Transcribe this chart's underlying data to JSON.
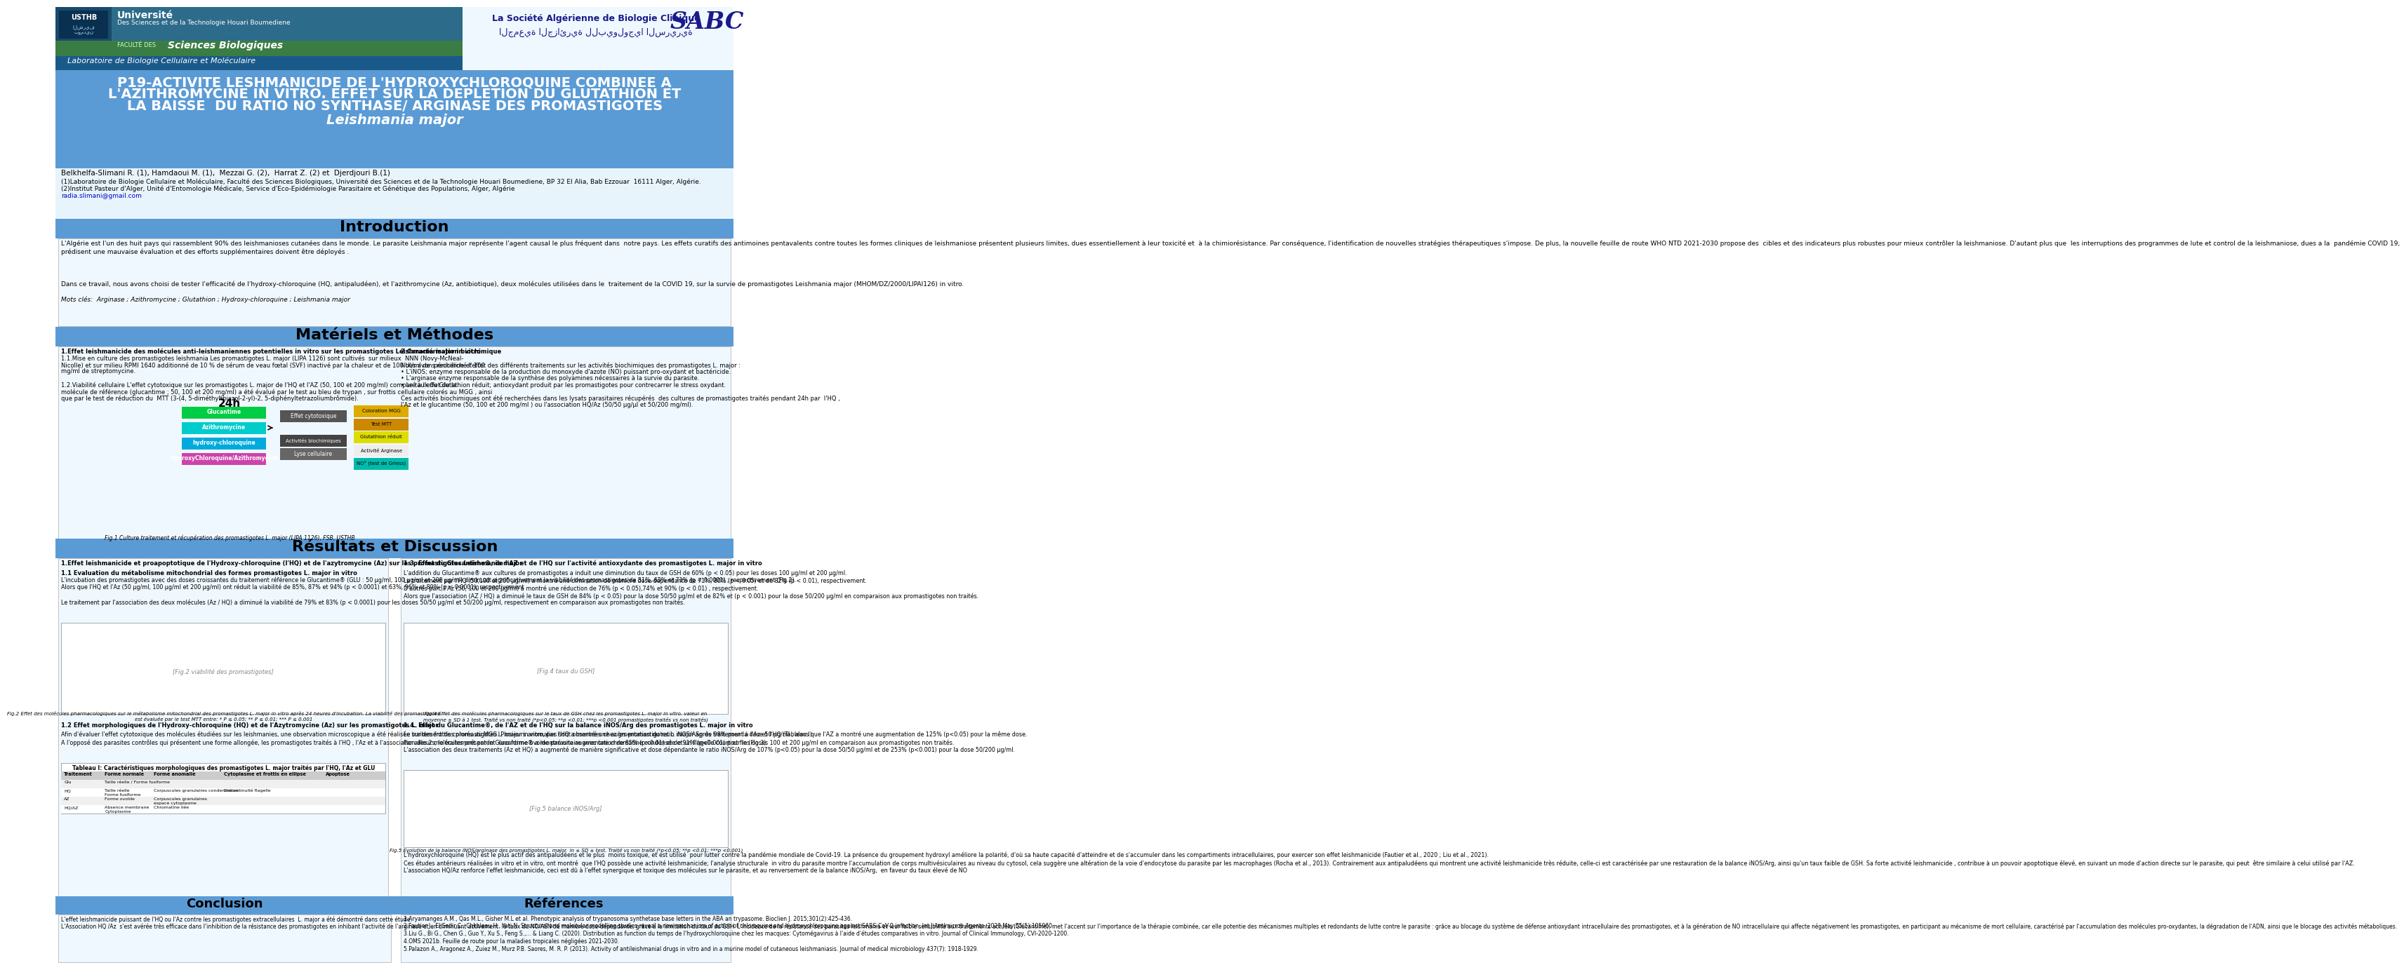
{
  "header_left_bg": "#2d6b8a",
  "header_logo_bg": "#1a4a6b",
  "faculty_green": "#3a7d44",
  "lab_blue": "#1a5a8a",
  "header_right_bg": "#f0f8ff",
  "title_bg": "#5b9bd5",
  "section_bg": "#5b9bd5",
  "content_bg": "#f0f8ff",
  "white": "#ffffff",
  "authors": "Belkhelfa-Slimani R. (1), Hamdaoui M. (1),  Mezzai G. (2),  Harrat Z. (2) et  Djerdjouri B.(1)",
  "affiliation1": "(1)Laboratoire de Biologie Cellulaire et Moléculaire, Faculté des Sciences Biologiques, Université des Sciences et de la Technologie Houari Boumediene, BP 32 El Alia, Bab Ezzouar  16111 Alger, Algérie.",
  "affiliation2": "(2)Institut Pasteur d'Alger, Unité d'Entomologie Médicale, Service d'Eco-Epidémiologie Parasitaire et Génétique des Populations, Alger, Algérie",
  "email": "radia.slimani@gmail.com",
  "poster_line1": "P19-ACTIVITE LESHMANICIDE DE L'HYDROXYCHLOROQUINE COMBINEE A",
  "poster_line2": "L'AZITHROMYCINE IN VITRO. EFFET SUR LA DEPLETION DU GLUTATHION ET",
  "poster_line3": "LA BAISSE  DU RATIO NO SYNTHASE/ ARGINASE DES PROMASTIGOTES",
  "poster_subtitle": "Leishmania major",
  "intro_para1": "L'Algérie est l'un des huit pays qui rassemblent 90% des leishmanioses cutanées dans le monde. Le parasite Leishmania major représente l'agent causal le plus fréquent dans  notre pays. Les effets curatifs des antimoines pentavalents contre toutes les formes cliniques de leishmaniose présentent plusieurs limites, dues essentiellement à leur toxicité et  à la chimiorésistance. Par conséquence, l'identification de nouvelles stratégies thérapeutiques s'impose. De plus, la nouvelle feuille de route WHO NTD 2021-2030 propose des  cibles et des indicateurs plus robustes pour mieux contrôler la leishmaniose. D'autant plus que  les interruptions des programmes de lute et control de la leishmaniose, dues a la  pandémie COVID 19, prédisent une mauvaise évaluation et des efforts supplémentaires doivent être déployés .",
  "intro_para2": "Dans ce travail, nous avons choisi de tester l'efficacité de l'hydroxy-chloroquine (HQ, antipaludéen), et l'azithromycine (Az, antibiotique), deux molécules utilisées dans le  traitement de la COVID 19, sur la survie de promastigotes Leishmania major (MHOM/DZ/2000/LIPAI126) in vitro.",
  "intro_motscles": "Mots clés:  Arginase ; Azithromycine ; Glutathion ; Hydroxy-chloroquine ; Leishmania major",
  "methods_l1": "1.Effet leishmanicide des molécules anti-leishmaniennes potentielles in vitro sur les promastigotes Leishmania major in vitro",
  "methods_l2": "1.1.Mise en culture des promastigotes leishmania Les promastigotes L. major (LIPA 1126) sont cultivés  sur milieux  NNN (Novy-McNeal-",
  "methods_l3": "Nicolle) et sur milieu RPMI 1640 additionné de 10 % de sérum de veau fœtal (SVF) inactivé par la chaleur et de 100 UI/ml de  pénicilline et 100",
  "methods_l4": "mg/ml de streptomycine.",
  "methods_l5": "1.2.Viabilité cellulaire L'effet cytotoxique sur les promastigotes L. major de l'HQ et l'AZ (50, 100 et 200 mg/ml) comparé à l'effet de la",
  "methods_l6": "molécule de référence (glucantime ; 50, 100 et 200 mg/ml) a été évalué par le test au bleu de trypan , sur frottis cellulaire colorés au MGG , ainsi",
  "methods_l7": "que par le test de réduction du  MTT (3-(4, 5-diméthylthiazol-2-yl)-2, 5-diphényltetrazoliumbrômide).",
  "methods_r1": "2.Caractérisation biochimique",
  "methods_r2": "Nous avons recherché l'effet des différents traitements sur les activités biochimiques des promastigotes L. major :",
  "methods_r3": "• L'iNOS; enzyme responsable de la production du monoxyde d'azote (NO) puissant pro-oxydant et bactéricide.",
  "methods_r4": "• L'arginase enzyme responsable de la synthèse des polyamines nécessaires à la survie du parasite.",
  "methods_r5": "• Le taux du Glutathion réduit; antioxydant produit par les promastigotes pour contrecarrer le stress oxydant.",
  "methods_r6": "Ces activités biochimiques ont été recherchées dans les lysats parasitaires récupérés  des cultures de promastigotes traités pendant 24h par  l'HQ ,",
  "methods_r7": "l'Az et le glucantime (50, 100 et 200 mg/ml ) ou l'association HQ/Az (50/50 µg/µl et 50/200 mg/ml).",
  "fig1_caption": "Fig.1 Culture traitement et récupération des promastigotes L. major (LIPA 1126), FSB, USTHB",
  "res_title_left": "1.Effet leishmanicide et proapoptotique de l'Hydroxy-chloroquine (l'HQ) et de l'azytromycine (Az) sur les promastigotes Leishmania major",
  "res_11": "1.1 Evaluation du métabolisme mitochondrial des formes promastigotes L. major in vitro",
  "res_11_body": "L'incubation des promastigotes avec des doses croissantes du traitement référence le Glucantime® (GLU : 50 µg/ml, 100 µg/ml et 200 µg/ml) diminuait significativement la viabilité des promastigotes de 51%, 63% et 71% (p < 0.0001) ; respectivement (Fig.2).\nAlors que l'HQ et l'Az (50 µg/ml, 100 µg/ml et 200 µg/ml) ont réduit la viabilité de 85%, 87% et 94% (p < 0.0001) et 63%, 96% et 89% (p < 0.0001), respectivement\n\nLe traitement par l'association des deux molécules (Az / HQ) a diminué la viabilité de 79% et 83% (p < 0.0001) pour les doses 50/50 µg/ml et 50/200 µg/ml, respectivement en comparaison aux promastigotes non traités.",
  "fig2_caption": "Fig.2 Effet des molécules pharmacologiques sur le métabolisme mitochondrial des promastigotes L. major in vitro après 24 heures d'incubation. La viabilité des promastigotes\nest évaluée par le test MTT entre: * P ≤ 0.05; ** P ≤ 0.01; *** P ≤ 0.001",
  "res_12": "1.2 Effet morphologiques de l'Hydroxy-chloroquine (HQ) et de l'Azytromycine (Az) sur les promastigotes L. major",
  "res_12_body": "Afin d'évaluer l'effet cytotoxique des molécules étudiées sur les leishmanies, une observation microscopique a été réalisée sur des frottis colorés au MGG. Plusieurs anomalies sont observées chez les promastigotes L. major après traitement à l'Az et l'HQ (Tableau I).\nA l'opposé des parasites contrôles qui présentent une forme allongée, les promastigotes traités à l'HQ , l'Az et à l'association des 2 molécules présentent  une forme ovoïde parasitaire avec une chromatine condensée et un flagelle court et fin (Fig.3).",
  "res_13": "1.3. Effet du Glucantime®, de l'AZ et de l'HQ sur l'activité antioxydante des promastigotes L. major in vitro",
  "res_13_body": "L'addition du Glucantime® aux cultures de promastigotes a induit une diminution du taux de GSH de 60% (p < 0.05) pour les doses 100 µg/ml et 200 µg/ml.\nLe traitement par l'HQ (50,100 et 200 µg/ml) a montré une diminution de manière dose-dépendante de 71%, 80% (p < 0.05) et de 82% (p < 0.01), respectivement.\nD'autres part, l'Az (50, 100 et 200 µg/ml) a montré une réduction de 76% (p < 0.05),74% et 90% (p < 0.01) , respectivement.\nAlors que l'association (AZ / HQ) a diminué le taux de GSH de 84% (p < 0.05) pour la dose 50/50 µg/ml et de 82% et (p < 0.001) pour la dose 50/200 µg/ml en comparaison aux promastigotes non traités.",
  "fig4_caption": "Fig.4 Effet des molécules pharmacologiques sur le taux de GSH chez les promastigotes L. major in vitro. valeur en\nmoyenne ± SD à 1 test. Traité vs non traité (*p<0.05; **p <0.01; ***p <0.001 promastigotes traités vs non traités)",
  "res_14": "1.4. Effet du Glucantime®, de l'AZ et de l'HQ sur la balance iNOS/Arg des promastigotes L. major in vitro",
  "res_14_body": "Le traitement des promastigotes L. major in vitro, par l'HQ a montré une augmentation du ratio iNOS/ASg de 98% pour la dose 50 µg/ml , alors que l'AZ a montré une augmentation de 125% (p<0.05) pour la même dose.\nPar ailleurs, le traitement par le Glucantime® a montré une augmentation de 85% (p<0.01) et de 91% (p<0.001) pour les doses 100 et 200 µg/ml en comparaison aux promastigotes non traités.\nL'association des deux traitements (Az et HQ) a augmenté de manière significative et dose dépendante le ratio iNOS/Arg de 107% (p<0.05) pour la dose 50/50 µg/ml et de 253% (p<0.001) pour la dose 50/200 µg/ml.",
  "fig5_caption": "Fig.5 Evolution de la balance iNOS/arginase des promastigotes L. major  in ± SD ± test. Traité vs non traité (*p<0.05; **p <0.01; ***p <0.001)",
  "res_right_bottom": "L'hydroxychloroquine (HQ) est le plus actif des antipaludéens et le plus  moins toxique, et est utilisé  pour lutter contre la pandémie mondiale de Covid-19. La présence du groupement hydroxyl améliore la polarité, d'où sa haute capacité d'atteindre et de s'accumuler dans les compartiments intracellulaires, pour exercer son effet leishmanicide (Fautier et al., 2020 ; Liu et al., 2021).\nCes études antérieurs réalisées in vitro et in vitro, ont montré  que l'HQ possède une activité leishmanicide; l'analyse structurale  in vitro du parasite montre l'accumulation de corps multivésiculaires au niveau du cytosol, cela suggère une altération de la voie d'endocytose du parasite par les macrophages (Rocha et al., 2013). Contrairement aux antipaludéens qui montrent une activité leishmanicide très réduite, celle-ci est caractérisée par une restauration de la balance iNOS/Arg, ainsi qu'un taux faible de GSH. Sa forte activité leishmanicide , contribue à un pouvoir apoptotique élevé, en suivant un mode d'action directe sur le parasite, qui peut  être similaire à celui utilisé par l'AZ.\nL'association HQ/Az renforce l'effet leishmanicide, ceci est dû à l'effet synergique et toxique des molécules sur le parasite, et au renversement de la balance iNOS/Arg,  en faveur du taux élevé de NO",
  "conclusion_text": "L'effet leishmanicide puissant de l'HQ ou l'Az contre les promastigotes extracellulaires  L. major a été démontré dans cette étude.\nL'Association HQ /Az  s'est avérée très efficace dans l'inhibition de la résistance des promastigotes en inhibant l'activité de l'arginase et en diminuant activement  le taux du NO/ASN de manière dose-dépendante, grâce à la limitation du taux du GSH. L'incidence de la résistance des parasites leishmania et leur faible sensibilité aux traitements actuels (Glucantime), met l'accent sur l'importance de la thérapie combinée, car elle potentie des mécanismes multiples et redondants de lutte contre le parasite : grâce au blocage du système de défense antioxydant intracellulaire des promastigotes, et à la génération de NO intracellulaire qui affecte négativement les promastigotes, en participant au mécanisme de mort cellulaire, caractérisé par l'accumulation des molécules pro-oxydantes, la dégradation de l'ADN, ainsi que le blocage des activités métaboliques.",
  "references_text": "1.Aryamanges A.M., Qas M.L., Gisher M.L et al. Phenotypic analysis of trypanosoma synthetase base letters in the ABA an trypasome. Bioclien J. 2015;301(2):425-436.\n2.Fautier J., El Sedir C., Chkbleau H., Yati N. Structural and molecular modelling studies reveal a new mechanism of action of chloroquine and hydroxychloroquine against SARS-CoV-2 infection. Int J Antimicrob Agents. 2020 May;55(5):105960.\n3.Liu G., Bi G., Chen G., Guo Y., Xu S., Feng S.,... & Liang C. (2020). Distribution as function du temps de l'hydroxychloroquine chez les macques: Cytomégavirus à l'aide d'études comparatives in vitro. Journal of Clinical Immunology, CVI-2020-1200.\n4.OMS 2021b. Feuille de route pour la maladies tropicales négligées 2021-2030.\n5.Palazon A., Aragonez A., Zuiez M., Murz P.B. Saores, M. R. P. (2013). Activity of antileishmanial drugs in vitro and in a murine model of cutaneous leishmaniasis. Journal of medical microbiology 437(7): 1918-1929."
}
